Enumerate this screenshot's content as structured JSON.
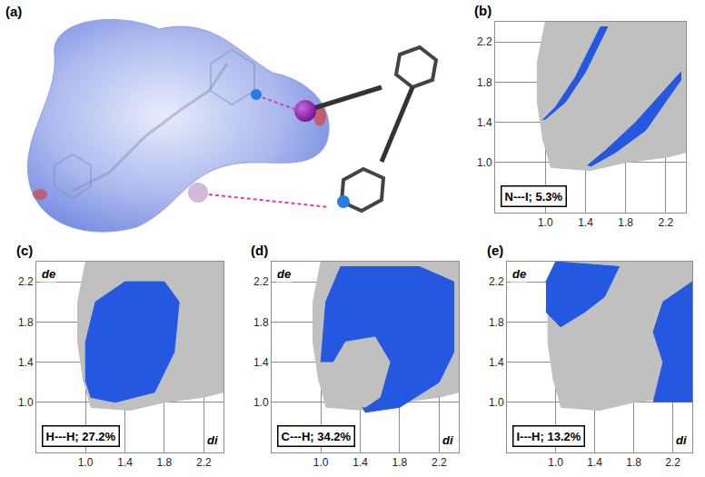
{
  "image": {
    "title": "(a)"
  },
  "chart_data": [
    {
      "type": "scatter",
      "title": "(b)",
      "annotations": [
        "N---I; 5.3%"
      ],
      "xlim": [
        0.5,
        2.4
      ],
      "ylim": [
        0.5,
        2.4
      ],
      "xticks": [
        {
          "value": 1.0,
          "label": "1.0"
        },
        1.4,
        1.8,
        2.2
      ],
      "yticks": [
        {
          "value": 1.0,
          "label": "1.0"
        },
        1.4,
        1.8,
        2.2
      ],
      "grid": true,
      "series": [
        {
          "type": "area",
          "color": "#c0c0c0",
          "x": [
            1.05,
            1.45,
            1.8,
            2.2,
            2.4,
            2.4,
            1.0,
            0.92,
            0.92,
            0.98
          ],
          "y": [
            0.95,
            0.92,
            1.0,
            1.05,
            1.1,
            2.4,
            2.4,
            2.0,
            1.6,
            1.2
          ]
        },
        {
          "type": "area",
          "color": "#2558e0",
          "x": [
            0.97,
            1.1,
            1.3,
            1.55,
            1.62,
            1.4,
            1.2,
            1.0
          ],
          "y": [
            1.42,
            1.55,
            1.85,
            2.35,
            2.35,
            1.9,
            1.6,
            1.43
          ]
        },
        {
          "type": "area",
          "color": "#2558e0",
          "x": [
            1.42,
            1.6,
            1.9,
            2.35,
            2.35,
            2.0,
            1.7,
            1.45
          ],
          "y": [
            0.97,
            1.12,
            1.4,
            1.9,
            1.82,
            1.32,
            1.1,
            0.96
          ]
        }
      ]
    },
    {
      "type": "scatter",
      "title": "(c)",
      "annotations": [
        "H---H; 27.2%"
      ],
      "xlabel": "di",
      "ylabel": "de",
      "xlim": [
        0.5,
        2.4
      ],
      "ylim": [
        0.5,
        2.4
      ],
      "xticks": [
        {
          "value": 1.0,
          "label": "1.0"
        },
        1.4,
        1.8,
        2.2
      ],
      "yticks": [
        {
          "value": 1.0,
          "label": "1.0"
        },
        1.4,
        1.8,
        2.2
      ],
      "grid": true,
      "series": [
        {
          "type": "area",
          "color": "#c0c0c0",
          "x": [
            1.05,
            1.45,
            1.8,
            2.2,
            2.4,
            2.4,
            1.0,
            0.92,
            0.92,
            0.98
          ],
          "y": [
            0.95,
            0.92,
            1.0,
            1.05,
            1.1,
            2.4,
            2.4,
            2.0,
            1.6,
            1.2
          ]
        },
        {
          "type": "area",
          "color": "#2558e0",
          "x": [
            1.05,
            1.3,
            1.7,
            1.9,
            1.95,
            1.8,
            1.4,
            1.1,
            1.0,
            1.0
          ],
          "y": [
            1.05,
            1.0,
            1.1,
            1.5,
            2.0,
            2.2,
            2.2,
            2.0,
            1.6,
            1.2
          ]
        }
      ]
    },
    {
      "type": "scatter",
      "title": "(d)",
      "annotations": [
        "C---H; 34.2%"
      ],
      "xlabel": "di",
      "ylabel": "de",
      "xlim": [
        0.5,
        2.4
      ],
      "ylim": [
        0.5,
        2.4
      ],
      "xticks": [
        {
          "value": 1.0,
          "label": "1.0"
        },
        1.4,
        1.8,
        2.2
      ],
      "yticks": [
        {
          "value": 1.0,
          "label": "1.0"
        },
        1.4,
        1.8,
        2.2
      ],
      "grid": true,
      "series": [
        {
          "type": "area",
          "color": "#c0c0c0",
          "x": [
            1.05,
            1.45,
            1.8,
            2.2,
            2.4,
            2.4,
            1.0,
            0.92,
            0.92,
            0.98
          ],
          "y": [
            0.95,
            0.92,
            1.0,
            1.05,
            1.1,
            2.4,
            2.4,
            2.0,
            1.6,
            1.2
          ]
        },
        {
          "type": "area",
          "color": "#2558e0",
          "x": [
            1.0,
            1.05,
            1.2,
            2.0,
            2.35,
            2.35,
            2.2,
            1.8,
            1.45,
            1.4,
            1.35,
            1.15
          ],
          "y": [
            1.4,
            2.0,
            2.35,
            2.35,
            2.2,
            1.5,
            1.2,
            0.95,
            0.9,
            1.0,
            1.3,
            1.4
          ]
        },
        {
          "type": "area",
          "color": "#c0c0c0",
          "x": [
            1.1,
            1.25,
            1.55,
            1.7,
            1.6,
            1.45,
            1.3,
            1.15
          ],
          "y": [
            1.35,
            1.6,
            1.65,
            1.4,
            1.05,
            0.95,
            1.0,
            1.15
          ]
        }
      ]
    },
    {
      "type": "scatter",
      "title": "(e)",
      "annotations": [
        "I---H; 13.2%"
      ],
      "xlabel": "di",
      "ylabel": "de",
      "xlim": [
        0.5,
        2.4
      ],
      "ylim": [
        0.5,
        2.4
      ],
      "xticks": [
        {
          "value": 1.0,
          "label": "1.0"
        },
        1.4,
        1.8,
        2.2
      ],
      "yticks": [
        {
          "value": 1.0,
          "label": "1.0"
        },
        1.4,
        1.8,
        2.2
      ],
      "grid": true,
      "series": [
        {
          "type": "area",
          "color": "#c0c0c0",
          "x": [
            1.05,
            1.45,
            1.8,
            2.2,
            2.4,
            2.4,
            1.0,
            0.92,
            0.92,
            0.98
          ],
          "y": [
            0.95,
            0.92,
            1.0,
            1.05,
            1.1,
            2.4,
            2.4,
            2.0,
            1.6,
            1.2
          ]
        },
        {
          "type": "area",
          "color": "#2558e0",
          "x": [
            0.9,
            1.05,
            1.3,
            1.5,
            1.65,
            1.0,
            0.9
          ],
          "y": [
            1.9,
            1.75,
            1.9,
            2.05,
            2.35,
            2.4,
            2.2
          ]
        },
        {
          "type": "area",
          "color": "#2558e0",
          "x": [
            2.0,
            2.1,
            2.0,
            2.1,
            2.4,
            2.4
          ],
          "y": [
            1.0,
            1.4,
            1.7,
            2.0,
            2.2,
            1.0
          ]
        }
      ]
    }
  ]
}
